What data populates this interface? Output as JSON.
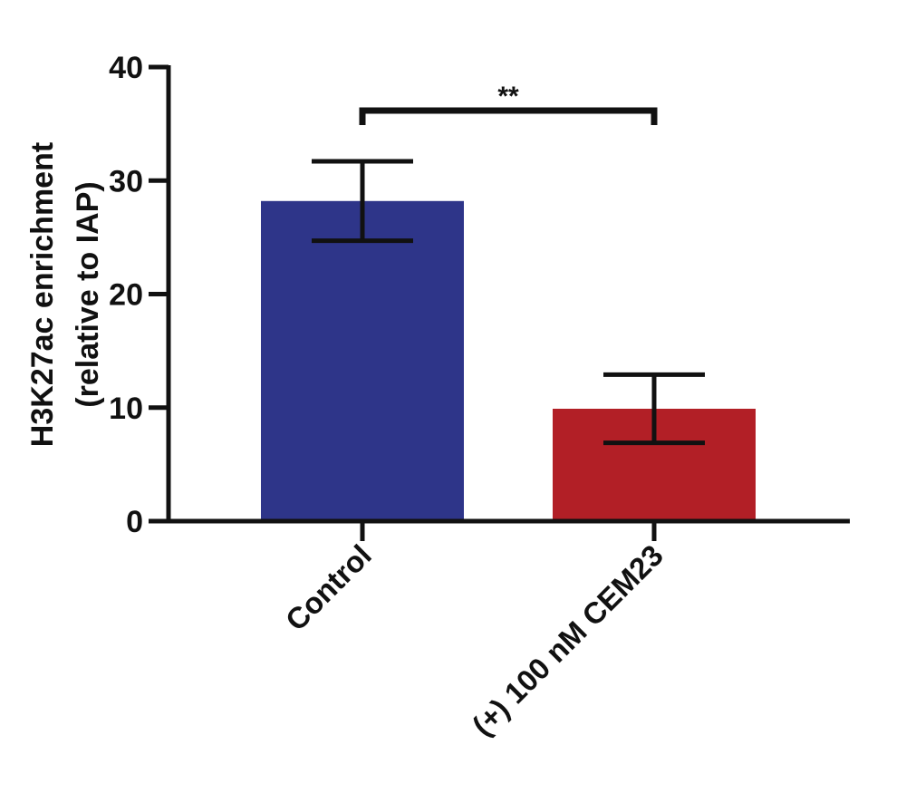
{
  "chart_data": {
    "type": "bar",
    "categories": [
      "Control",
      "(+) 100 nM CEM23"
    ],
    "values": [
      28.2,
      9.9
    ],
    "error": [
      3.5,
      3.0
    ],
    "colors": [
      "#2e3589",
      "#b21f26"
    ],
    "ylabel_line1": "H3K27ac enrichment",
    "ylabel_line2": "(relative to IAP)",
    "ylim": [
      0,
      40
    ],
    "yticks": [
      0,
      10,
      20,
      30,
      40
    ],
    "significance": {
      "label": "**",
      "from": 0,
      "to": 1
    },
    "grid": false
  }
}
